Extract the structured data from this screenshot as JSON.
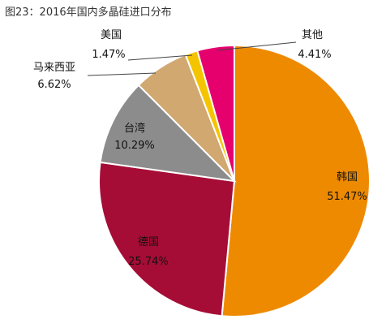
{
  "chart_data": {
    "type": "pie",
    "title": "图23：2016年国内多晶硅进口分布",
    "slices": [
      {
        "label": "韩国",
        "value": 51.47,
        "value_label": "51.47%",
        "color": "#ee8a00"
      },
      {
        "label": "德国",
        "value": 25.74,
        "value_label": "25.74%",
        "color": "#a50d36"
      },
      {
        "label": "台湾",
        "value": 10.29,
        "value_label": "10.29%",
        "color": "#8c8c8c"
      },
      {
        "label": "马来西亚",
        "value": 6.62,
        "value_label": "6.62%",
        "color": "#d0a870"
      },
      {
        "label": "美国",
        "value": 1.47,
        "value_label": "1.47%",
        "color": "#f5c400"
      },
      {
        "label": "其他",
        "value": 4.41,
        "value_label": "4.41%",
        "color": "#e6006e"
      }
    ],
    "start_angle": "12 o'clock",
    "direction": "clockwise"
  }
}
